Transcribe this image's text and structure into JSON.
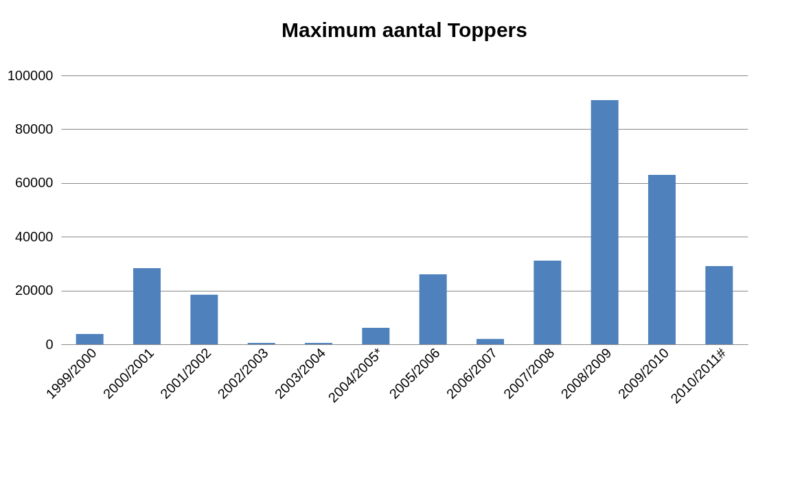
{
  "chart_data": {
    "type": "bar",
    "title": "Maximum aantal Toppers",
    "categories": [
      "1999/2000",
      "2000/2001",
      "2001/2002",
      "2002/2003",
      "2003/2004",
      "2004/2005*",
      "2005/2006",
      "2006/2007",
      "2007/2008",
      "2008/2009",
      "2009/2010",
      "2010/2011#"
    ],
    "values": [
      3800,
      28300,
      18400,
      500,
      500,
      6100,
      26000,
      2000,
      31100,
      90800,
      63000,
      29100
    ],
    "color": "#4f81bd",
    "ylim": [
      0,
      100000
    ],
    "yticks": [
      0,
      20000,
      40000,
      60000,
      80000,
      100000
    ],
    "grid": "y"
  }
}
